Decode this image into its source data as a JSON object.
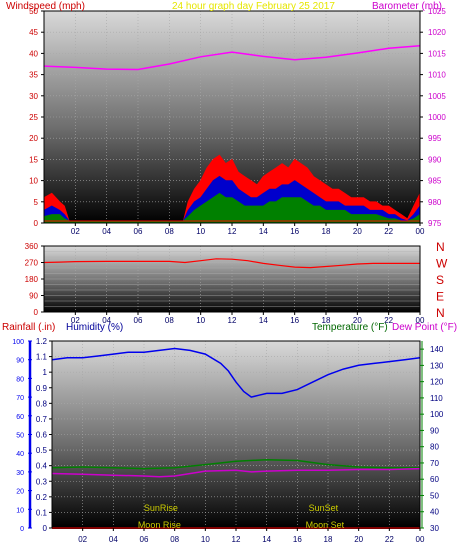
{
  "chart_data": [
    {
      "type": "line",
      "panel": "wind-barometer",
      "title": "24 hour graph day   February 25 2017",
      "ylabel": "Windspeed (mph)",
      "y2label": "Barometer (mb)",
      "ylim": [
        0,
        50
      ],
      "y2lim": [
        975,
        1025
      ],
      "y_ticks": [
        "0",
        "5",
        "10",
        "15",
        "20",
        "25",
        "30",
        "35",
        "40",
        "45",
        "50"
      ],
      "y2_ticks": [
        "975",
        "980",
        "985",
        "990",
        "995",
        "1000",
        "1005",
        "1010",
        "1015",
        "1020",
        "1025"
      ],
      "x_ticks": [
        "02",
        "04",
        "06",
        "08",
        "10",
        "12",
        "14",
        "16",
        "18",
        "20",
        "22",
        "00"
      ],
      "xlim": [
        0,
        24
      ],
      "grid": true,
      "colors": {
        "gust": "#ff0000",
        "wind": "#0000cc",
        "avg": "#008000",
        "barometer": "#ff00ff",
        "title": "#e6e600",
        "left_label": "#cc0000",
        "right_label": "#cc00cc"
      },
      "series": [
        {
          "role": "gust",
          "x": [
            0,
            0.5,
            1,
            1.3,
            1.6,
            8.9,
            9.2,
            9.6,
            10,
            10.4,
            10.8,
            11.2,
            11.6,
            12,
            12.4,
            12.8,
            13.2,
            13.6,
            14,
            14.4,
            14.8,
            15.2,
            15.6,
            16,
            16.4,
            16.8,
            17.2,
            17.6,
            18,
            18.4,
            18.8,
            19.2,
            19.6,
            20,
            20.4,
            20.8,
            21.2,
            21.6,
            22,
            22.4,
            22.8,
            23.2,
            23.6,
            24
          ],
          "values": [
            6,
            7,
            5,
            4,
            0.5,
            0.5,
            5,
            8,
            10,
            13,
            15,
            16,
            14,
            15,
            12,
            11,
            10,
            9,
            11,
            12,
            13,
            14,
            13,
            15,
            14,
            13,
            11,
            10,
            9,
            8,
            8,
            7,
            6,
            6,
            6,
            5,
            5,
            4,
            4,
            3,
            2,
            1,
            4,
            7
          ]
        },
        {
          "role": "wind",
          "x": [
            0,
            0.5,
            1,
            1.3,
            1.6,
            8.9,
            9.2,
            9.6,
            10,
            10.4,
            10.8,
            11.2,
            11.6,
            12,
            12.4,
            12.8,
            13.2,
            13.6,
            14,
            14.4,
            14.8,
            15.2,
            15.6,
            16,
            16.4,
            16.8,
            17.2,
            17.6,
            18,
            18.4,
            18.8,
            19.2,
            19.6,
            20,
            20.4,
            20.8,
            21.2,
            21.6,
            22,
            22.4,
            22.8,
            23.2,
            23.6,
            24
          ],
          "values": [
            3,
            4,
            3,
            2,
            0.5,
            0.5,
            3,
            5,
            6,
            8,
            10,
            11,
            10,
            10,
            8,
            7,
            6,
            6,
            7,
            8,
            8,
            9,
            9,
            10,
            9,
            8,
            7,
            6,
            5,
            5,
            5,
            4,
            4,
            4,
            4,
            3,
            3,
            3,
            2,
            2,
            1,
            0.5,
            2,
            4
          ]
        },
        {
          "role": "avg",
          "x": [
            0,
            0.5,
            1,
            1.3,
            1.6,
            8.9,
            9.2,
            9.6,
            10,
            10.4,
            10.8,
            11.2,
            11.6,
            12,
            12.4,
            12.8,
            13.2,
            13.6,
            14,
            14.4,
            14.8,
            15.2,
            15.6,
            16,
            16.4,
            16.8,
            17.2,
            17.6,
            18,
            18.4,
            18.8,
            19.2,
            19.6,
            20,
            20.4,
            20.8,
            21.2,
            21.6,
            22,
            22.4,
            22.8,
            23.2,
            23.6,
            24
          ],
          "values": [
            1.5,
            2,
            2,
            1,
            0.5,
            0.5,
            1.5,
            3,
            4,
            5,
            6,
            7,
            6,
            6,
            5,
            4,
            4,
            4,
            4,
            5,
            5,
            6,
            6,
            6,
            6,
            5,
            4,
            4,
            3,
            3,
            3,
            3,
            2,
            2,
            2,
            2,
            2,
            1.5,
            1,
            1,
            0.5,
            0.5,
            1,
            2
          ]
        },
        {
          "role": "barometer",
          "axis": "right",
          "x": [
            0,
            2,
            4,
            6,
            8,
            10,
            12,
            14,
            16,
            18,
            20,
            22,
            24
          ],
          "values": [
            1012,
            1011.7,
            1011.3,
            1011.2,
            1012.5,
            1014.2,
            1015.3,
            1014.3,
            1013.5,
            1014.1,
            1015.1,
            1016.2,
            1016.8
          ]
        }
      ]
    },
    {
      "type": "line",
      "panel": "wind-direction",
      "ylim": [
        0,
        360
      ],
      "y_ticks": [
        "0",
        "90",
        "180",
        "270",
        "360"
      ],
      "y_tick_values": [
        0,
        90,
        180,
        270,
        360
      ],
      "y_minor_ticks": [
        "0",
        "30",
        "60",
        "90",
        "120",
        "150",
        "180",
        "210",
        "240",
        "270",
        "300",
        "330",
        "360"
      ],
      "compass": [
        "N",
        "W",
        "S",
        "E",
        "N"
      ],
      "x_ticks": [
        "02",
        "04",
        "06",
        "08",
        "10",
        "12",
        "14",
        "16",
        "18",
        "20",
        "22",
        "00"
      ],
      "xlim": [
        0,
        24
      ],
      "grid": true,
      "colors": {
        "direction": "#ff0000",
        "compass": "#cc0000"
      },
      "series": [
        {
          "role": "direction",
          "x": [
            0,
            1,
            2,
            4,
            6,
            8,
            9,
            10,
            11,
            12,
            13,
            14,
            15,
            16,
            17,
            18,
            19,
            20,
            21,
            22,
            23,
            24
          ],
          "values": [
            270,
            272,
            275,
            276,
            276,
            276,
            270,
            280,
            290,
            288,
            280,
            265,
            255,
            245,
            242,
            248,
            255,
            262,
            265,
            265,
            265,
            265
          ]
        }
      ]
    },
    {
      "type": "line",
      "panel": "temperature-humidity",
      "ylabel_rain": "Rainfall (.in)",
      "ylabel_humidity": "Humidity (%)",
      "y2label_temp": "Temperature (°F)",
      "y2label_dew": "Dew Point (°F)",
      "rain_ticks": [
        "0",
        "0.1",
        "0.2",
        "0.3",
        "0.4",
        "0.5",
        "0.6",
        "0.7",
        "0.8",
        "0.9",
        "1",
        "1.1",
        "1.2"
      ],
      "rain_lim": [
        0,
        1.2
      ],
      "humidity_ticks": [
        "0",
        "10",
        "20",
        "30",
        "40",
        "50",
        "60",
        "70",
        "80",
        "90",
        "100"
      ],
      "humidity_lim": [
        0,
        100
      ],
      "temp_ticks": [
        "30",
        "40",
        "50",
        "60",
        "70",
        "80",
        "90",
        "100",
        "110",
        "120",
        "130",
        "140"
      ],
      "temp_lim": [
        30,
        145
      ],
      "x_ticks": [
        "02",
        "04",
        "06",
        "08",
        "10",
        "12",
        "14",
        "16",
        "18",
        "20",
        "22",
        "00"
      ],
      "xlim": [
        0,
        24
      ],
      "grid": true,
      "annotations": [
        {
          "text": "SunRise",
          "x": 7.1,
          "row": "sun"
        },
        {
          "text": "SunSet",
          "x": 17.7,
          "row": "sun"
        },
        {
          "text": "Moon Rise",
          "x": 7.0,
          "row": "moon"
        },
        {
          "text": "Moon Set",
          "x": 17.8,
          "row": "moon"
        }
      ],
      "colors": {
        "humidity": "#0000ee",
        "temperature": "#008000",
        "dewpoint": "#cc00cc",
        "rain": "#ff0000",
        "rain_label": "#cc0000",
        "humidity_label": "#000099",
        "temp_label": "#006600",
        "dew_label": "#cc00cc",
        "annotation": "#cccc00"
      },
      "series": [
        {
          "role": "humidity",
          "axis": "humidity",
          "x": [
            0,
            1,
            2,
            3,
            4,
            5,
            6,
            7,
            8,
            9,
            10,
            11,
            11.5,
            12,
            12.5,
            13,
            13.5,
            14,
            15,
            16,
            17,
            18,
            19,
            20,
            21,
            22,
            23,
            24
          ],
          "values": [
            90,
            91,
            91,
            92,
            93,
            94,
            94,
            95,
            96,
            95,
            93,
            88,
            84,
            78,
            73,
            70,
            71,
            72,
            72,
            74,
            78,
            82,
            85,
            87,
            88,
            89,
            90,
            91
          ]
        },
        {
          "role": "temperature",
          "axis": "temp",
          "x": [
            0,
            2,
            4,
            6,
            8,
            10,
            12,
            14,
            16,
            18,
            20,
            22,
            24
          ],
          "values": [
            67,
            67.5,
            67,
            66.5,
            67,
            69,
            71,
            72,
            71.5,
            69,
            67.5,
            67,
            67
          ]
        },
        {
          "role": "dewpoint",
          "axis": "temp",
          "x": [
            0,
            2,
            4,
            6,
            7,
            8,
            10,
            12,
            13,
            14,
            16,
            18,
            20,
            22,
            24
          ],
          "values": [
            63.5,
            63,
            62.5,
            62,
            61.5,
            62,
            65,
            65.5,
            64.5,
            65,
            65.5,
            65.5,
            66,
            66,
            66.5
          ]
        },
        {
          "role": "rain",
          "axis": "rain",
          "x": [
            0,
            24
          ],
          "values": [
            0,
            0
          ]
        }
      ]
    }
  ]
}
